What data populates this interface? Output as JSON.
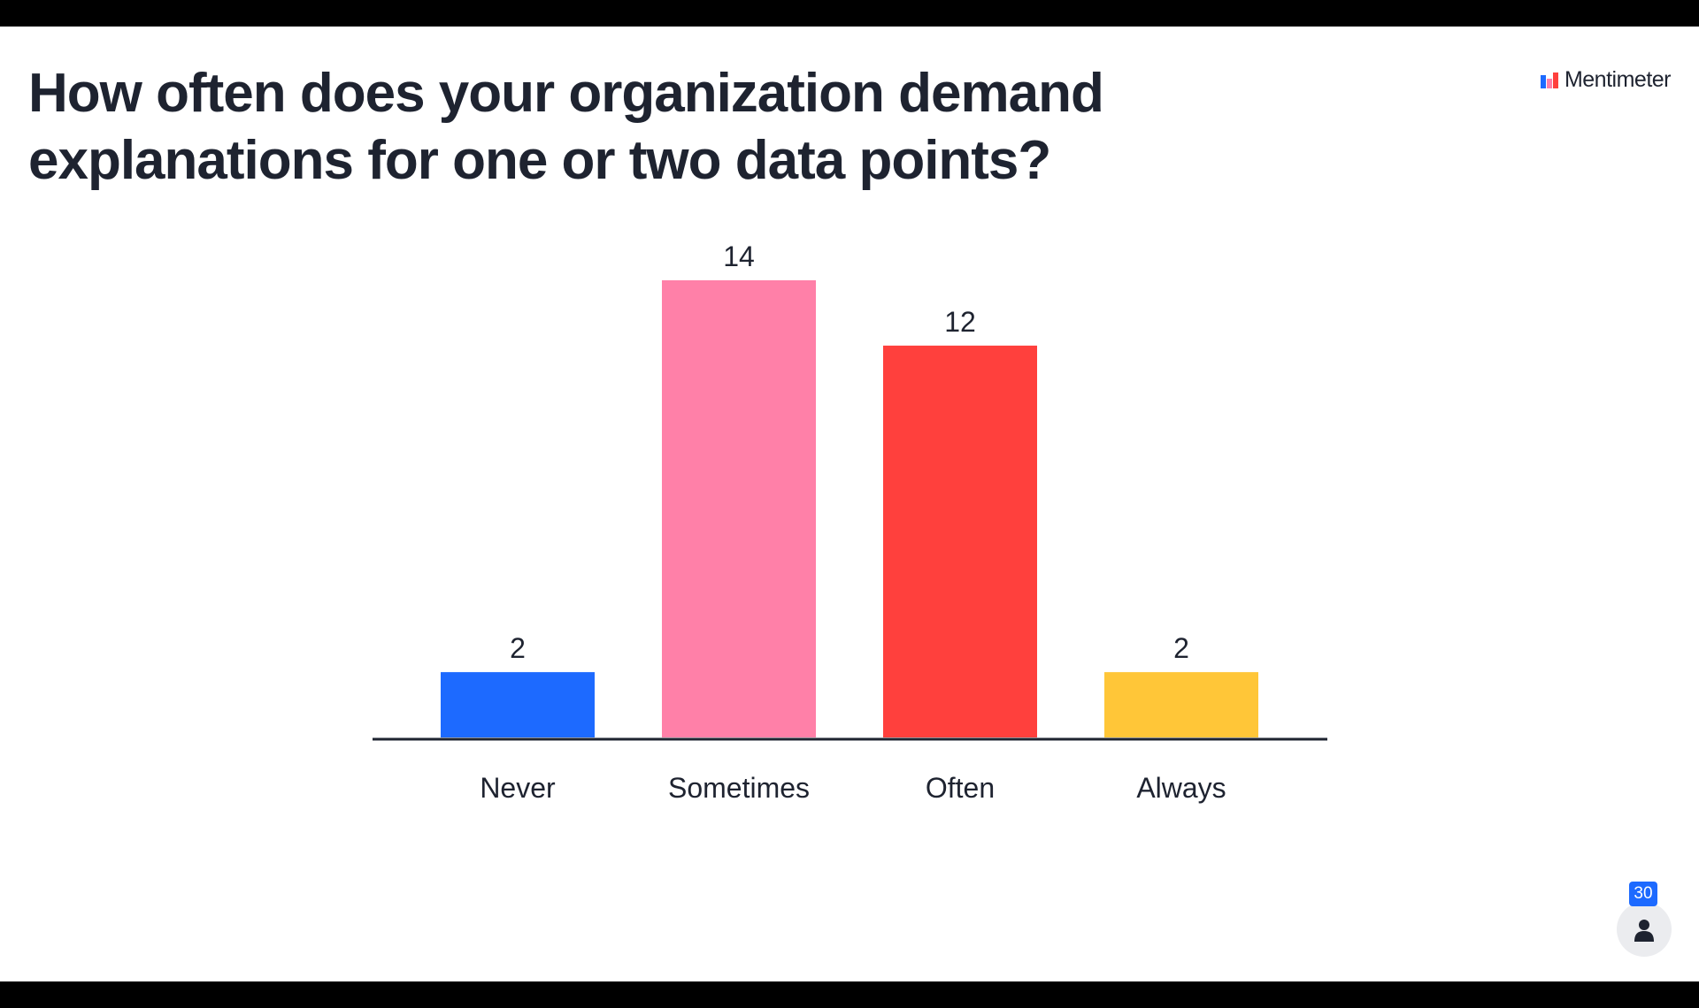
{
  "slide": {
    "question": "How often does your organization demand explanations for one or two data points?",
    "brand": "Mentimeter",
    "participant_count": "30"
  },
  "icons": {
    "brand_logo": "mentimeter-logo-icon",
    "participants": "person-icon"
  },
  "chart_data": {
    "type": "bar",
    "categories": [
      "Never",
      "Sometimes",
      "Often",
      "Always"
    ],
    "values": [
      2,
      14,
      12,
      2
    ],
    "colors": [
      "#1d6aff",
      "#ff80a8",
      "#ff403d",
      "#ffc638"
    ],
    "data_labels": true,
    "title": "",
    "xlabel": "",
    "ylabel": "",
    "ylim": [
      0,
      14
    ],
    "grid": false,
    "legend": "none"
  }
}
